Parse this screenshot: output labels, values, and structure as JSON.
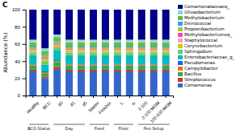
{
  "chart_data": {
    "type": "bar",
    "stacked": true,
    "title": "C",
    "ylabel": "Abundance (%)",
    "categories": [
      "Healthy",
      "BCC",
      "d0",
      "d1",
      "d5",
      "Starter",
      "Finisher",
      "L",
      "w",
      "2-100",
      "2-100 MGM",
      "100-500 MGM"
    ],
    "groups": [
      {
        "label": "BCO Status",
        "categories": [
          "Healthy",
          "BCC"
        ]
      },
      {
        "label": "Day",
        "categories": [
          "d0",
          "d1",
          "d5"
        ]
      },
      {
        "label": "Feed",
        "categories": [
          "Starter",
          "Finisher"
        ]
      },
      {
        "label": "Floor",
        "categories": [
          "L",
          "w"
        ]
      },
      {
        "label": "Pen Setup",
        "categories": [
          "2-100",
          "2-100 MGM",
          "100-500 MGM"
        ]
      }
    ],
    "series": [
      {
        "name": "Comamonas",
        "color": "#3366CC",
        "values": [
          28,
          20,
          30,
          28,
          28,
          28,
          28,
          28,
          28,
          28,
          28,
          28
        ]
      },
      {
        "name": "Streptococcus",
        "color": "#CC3333",
        "values": [
          2,
          2,
          3,
          2,
          2,
          2,
          2,
          2,
          2,
          2,
          2,
          2
        ]
      },
      {
        "name": "Bacillus",
        "color": "#33AA44",
        "values": [
          5,
          4,
          6,
          5,
          5,
          5,
          5,
          5,
          5,
          5,
          5,
          5
        ]
      },
      {
        "name": "Campylobacter",
        "color": "#FF6600",
        "values": [
          1,
          1,
          1,
          1,
          1,
          1,
          1,
          1,
          1,
          1,
          1,
          1
        ]
      },
      {
        "name": "Pseudomonas",
        "color": "#0066FF",
        "values": [
          1,
          1,
          1,
          1,
          1,
          1,
          1,
          1,
          1,
          1,
          1,
          1
        ]
      },
      {
        "name": "Enterobacteriaceae_g_",
        "color": "#00BBBB",
        "values": [
          10,
          8,
          12,
          10,
          10,
          10,
          10,
          10,
          10,
          10,
          10,
          10
        ]
      },
      {
        "name": "Sphingodum",
        "color": "#66CC66",
        "values": [
          3,
          4,
          3,
          3,
          3,
          3,
          3,
          3,
          3,
          3,
          3,
          3
        ]
      },
      {
        "name": "Corynebacterium",
        "color": "#CCCC00",
        "values": [
          2,
          2,
          2,
          2,
          2,
          2,
          2,
          2,
          2,
          2,
          2,
          2
        ]
      },
      {
        "name": "Staphylococcal",
        "color": "#FF99CC",
        "values": [
          1,
          1,
          1,
          1,
          1,
          1,
          1,
          1,
          1,
          1,
          1,
          1
        ]
      },
      {
        "name": "Methylobacteriumeq_",
        "color": "#FF44AA",
        "values": [
          1,
          1,
          1,
          1,
          1,
          1,
          1,
          1,
          1,
          1,
          1,
          1
        ]
      },
      {
        "name": "Propionibacterium",
        "color": "#99CC33",
        "values": [
          2,
          2,
          2,
          2,
          2,
          2,
          2,
          2,
          2,
          2,
          2,
          2
        ]
      },
      {
        "name": "Deinococcal",
        "color": "#3399FF",
        "values": [
          1,
          1,
          1,
          1,
          1,
          1,
          1,
          1,
          1,
          1,
          1,
          1
        ]
      },
      {
        "name": "Methylobacterium",
        "color": "#66BB44",
        "values": [
          5,
          5,
          5,
          5,
          5,
          5,
          5,
          5,
          5,
          5,
          5,
          5
        ]
      },
      {
        "name": "Olivaobacterium",
        "color": "#88DDDD",
        "values": [
          3,
          3,
          3,
          3,
          3,
          3,
          3,
          3,
          3,
          3,
          3,
          3
        ]
      },
      {
        "name": "Comamonataceaeq_",
        "color": "#000088",
        "values": [
          35,
          45,
          29,
          35,
          35,
          35,
          35,
          35,
          35,
          35,
          35,
          35
        ]
      }
    ],
    "ylim": [
      0,
      100
    ],
    "yticks": [
      0,
      20,
      40,
      60,
      80,
      100
    ],
    "grid": false,
    "legend": "right"
  }
}
